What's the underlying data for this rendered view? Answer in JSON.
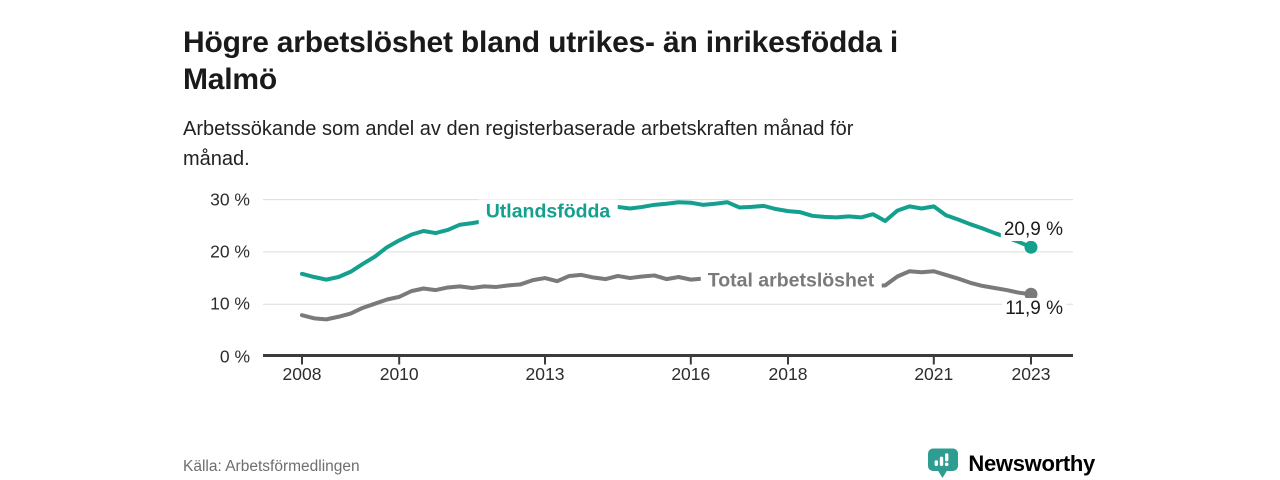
{
  "title": {
    "lines": [
      "Högre arbetslöshet bland utrikes- än inrikesfödda i",
      "Malmö"
    ]
  },
  "subtitle": {
    "lines": [
      "Arbetssökande som andel av den registerbaserade arbetskraften månad för",
      "månad."
    ]
  },
  "source_text": "Källa: Arbetsförmedlingen",
  "brand": {
    "name": "Newsworthy",
    "color": "#2f9c91"
  },
  "colors": {
    "accent_teal": "#14a08f",
    "series_gray": "#7a7a7a",
    "axis": "#3b3b3b",
    "gridline": "#dcdcdc",
    "value_label": "#1c1c1c"
  },
  "chart_data": {
    "type": "line",
    "title": "Högre arbetslöshet bland utrikes- än inrikesfödda i Malmö",
    "xlabel": "",
    "ylabel": "",
    "grid": "horizontal",
    "x_axis": {
      "ticks": [
        2008,
        2010,
        2013,
        2016,
        2018,
        2021,
        2023
      ]
    },
    "y_axis": {
      "unit": "%",
      "ticks": [
        {
          "value": 0,
          "label": "0 %"
        },
        {
          "value": 10,
          "label": "10 %"
        },
        {
          "value": 20,
          "label": "20 %"
        },
        {
          "value": 30,
          "label": "30 %"
        }
      ],
      "range": [
        0,
        30
      ]
    },
    "x_start": 2008.0,
    "x_step_years": 0.25,
    "series": [
      {
        "name": "Utlandsfödda",
        "color": "#14a08f",
        "end_value": 20.9,
        "end_label": "20,9 %",
        "values": [
          15.8,
          15.2,
          14.7,
          15.2,
          16.2,
          17.7,
          19.1,
          20.9,
          22.2,
          23.3,
          24.0,
          23.6,
          24.2,
          25.2,
          25.5,
          25.9,
          26.2,
          26.6,
          26.9,
          27.3,
          27.5,
          27.8,
          28.1,
          28.3,
          28.5,
          28.4,
          28.6,
          28.3,
          28.6,
          29.0,
          29.2,
          29.5,
          29.4,
          29.0,
          29.2,
          29.5,
          28.5,
          28.6,
          28.8,
          28.2,
          27.8,
          27.6,
          26.9,
          26.7,
          26.6,
          26.8,
          26.6,
          27.2,
          25.9,
          27.9,
          28.7,
          28.3,
          28.7,
          27.0,
          26.2,
          25.3,
          24.5,
          23.6,
          22.8,
          21.9,
          20.9
        ]
      },
      {
        "name": "Total arbetslöshet",
        "color": "#7a7a7a",
        "end_value": 11.9,
        "end_label": "11,9 %",
        "values": [
          7.9,
          7.3,
          7.1,
          7.6,
          8.2,
          9.3,
          10.1,
          10.9,
          11.4,
          12.5,
          13.0,
          12.7,
          13.2,
          13.4,
          13.1,
          13.4,
          13.3,
          13.6,
          13.8,
          14.6,
          15.0,
          14.4,
          15.4,
          15.6,
          15.1,
          14.8,
          15.4,
          15.0,
          15.3,
          15.5,
          14.8,
          15.2,
          14.7,
          14.9,
          15.1,
          14.8,
          14.6,
          14.4,
          14.2,
          14.0,
          13.8,
          13.6,
          13.4,
          13.3,
          13.2,
          13.3,
          13.4,
          13.5,
          13.6,
          15.3,
          16.3,
          16.1,
          16.3,
          15.6,
          14.9,
          14.1,
          13.5,
          13.1,
          12.7,
          12.2,
          11.9
        ]
      }
    ]
  }
}
